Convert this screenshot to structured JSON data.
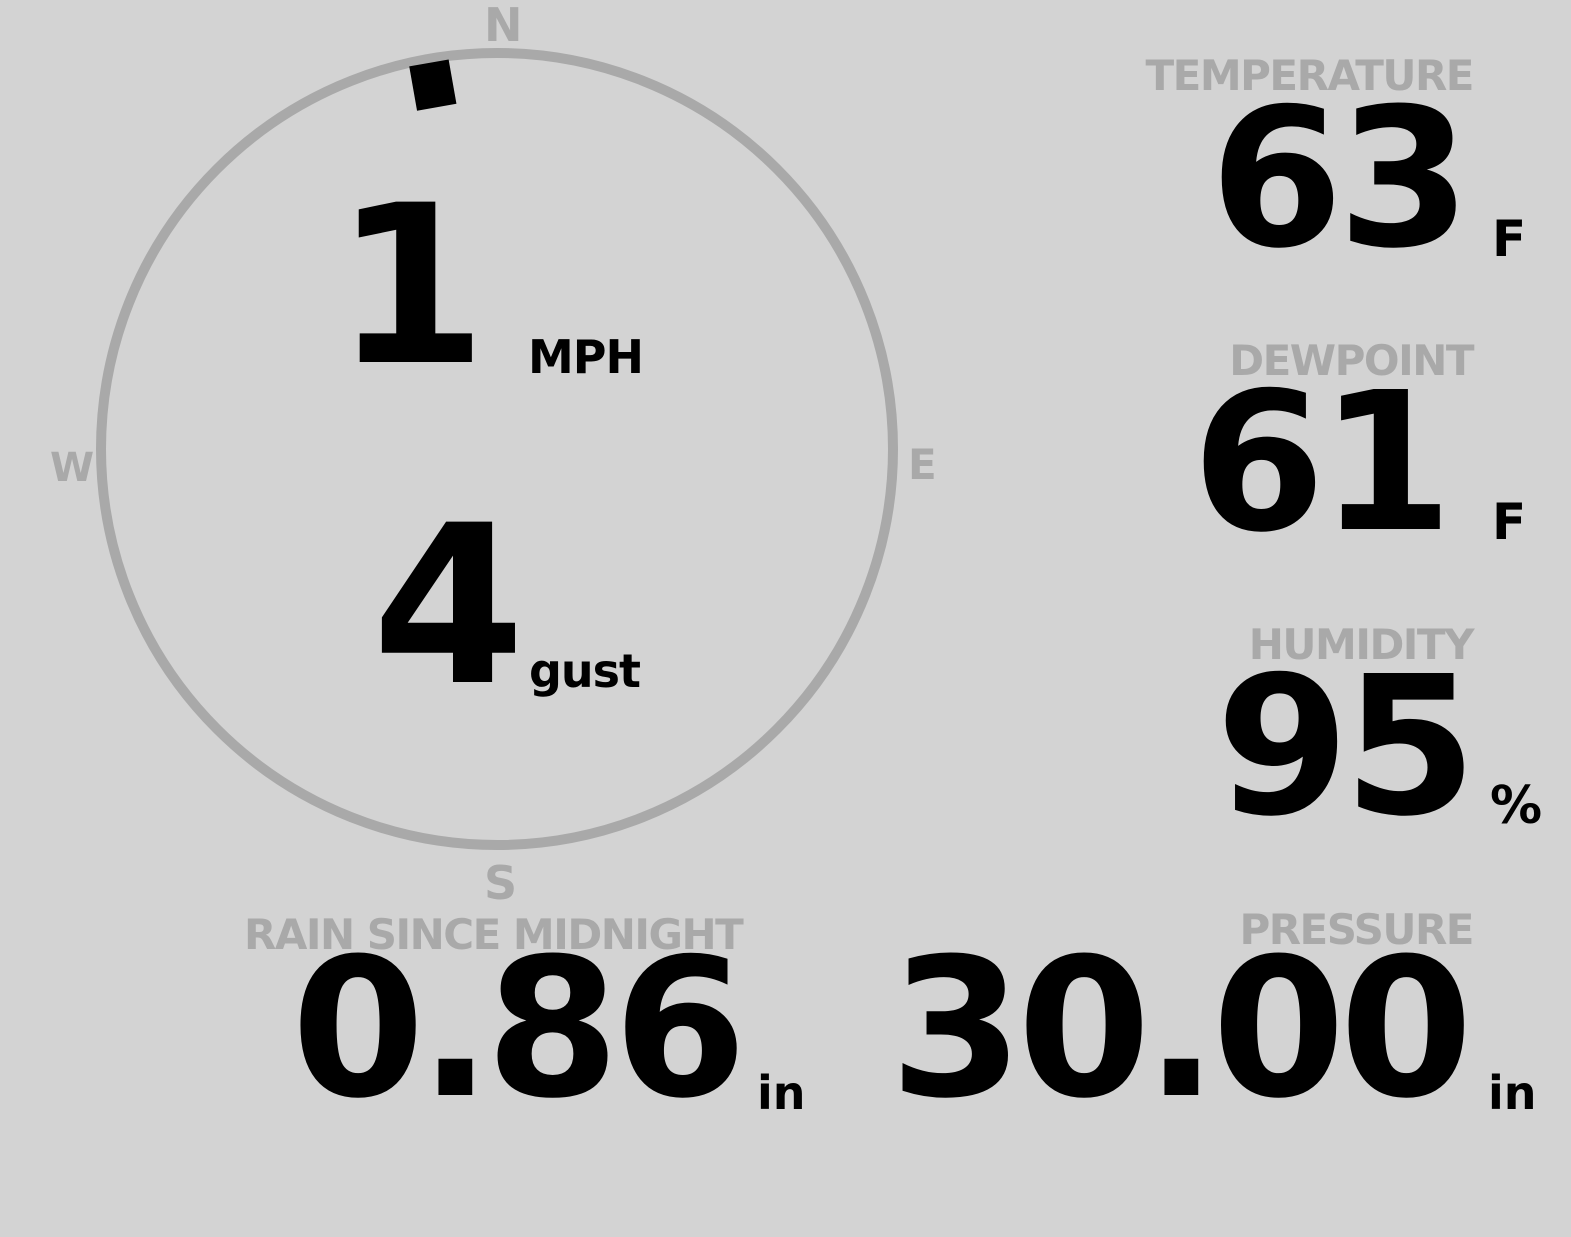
{
  "wind": {
    "speed": "1",
    "speed_unit": "MPH",
    "gust": "4",
    "gust_unit": "gust",
    "direction_deg": 350,
    "compass": {
      "n": "N",
      "e": "E",
      "s": "S",
      "w": "W"
    }
  },
  "temperature": {
    "label": "TEMPERATURE",
    "value": "63",
    "unit": "F"
  },
  "dewpoint": {
    "label": "DEWPOINT",
    "value": "61",
    "unit": "F"
  },
  "humidity": {
    "label": "HUMIDITY",
    "value": "95",
    "unit": "%"
  },
  "rain": {
    "label": "RAIN SINCE MIDNIGHT",
    "value": "0.86",
    "unit": "in"
  },
  "pressure": {
    "label": "PRESSURE",
    "value": "30.00",
    "unit": "in"
  },
  "colors": {
    "background": "#d3d3d3",
    "label": "#a9a9a9",
    "value": "#000000"
  }
}
